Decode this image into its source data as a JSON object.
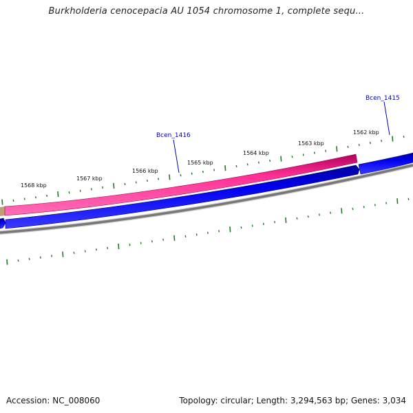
{
  "title": "Burkholderia cenocepacia AU 1054 chromosome 1, complete sequ...",
  "footer": {
    "accession": "Accession: NC_008060",
    "summary": "Topology: circular; Length: 3,294,563 bp; Genes: 3,034"
  },
  "ruler_labels": [
    "1568 kbp",
    "1567 kbp",
    "1566 kbp",
    "1565 kbp",
    "1564 kbp",
    "1563 kbp",
    "1562 kbp"
  ],
  "gene_labels": [
    "Bcen_1416",
    "Bcen_1415"
  ],
  "colors": {
    "forward_gene": "#ff3399",
    "reverse_gene": "#0000ee",
    "backbone": "#777777",
    "ticks": "#227722",
    "gene_label": "#0000aa",
    "partial_gene": "#c0a070"
  }
}
